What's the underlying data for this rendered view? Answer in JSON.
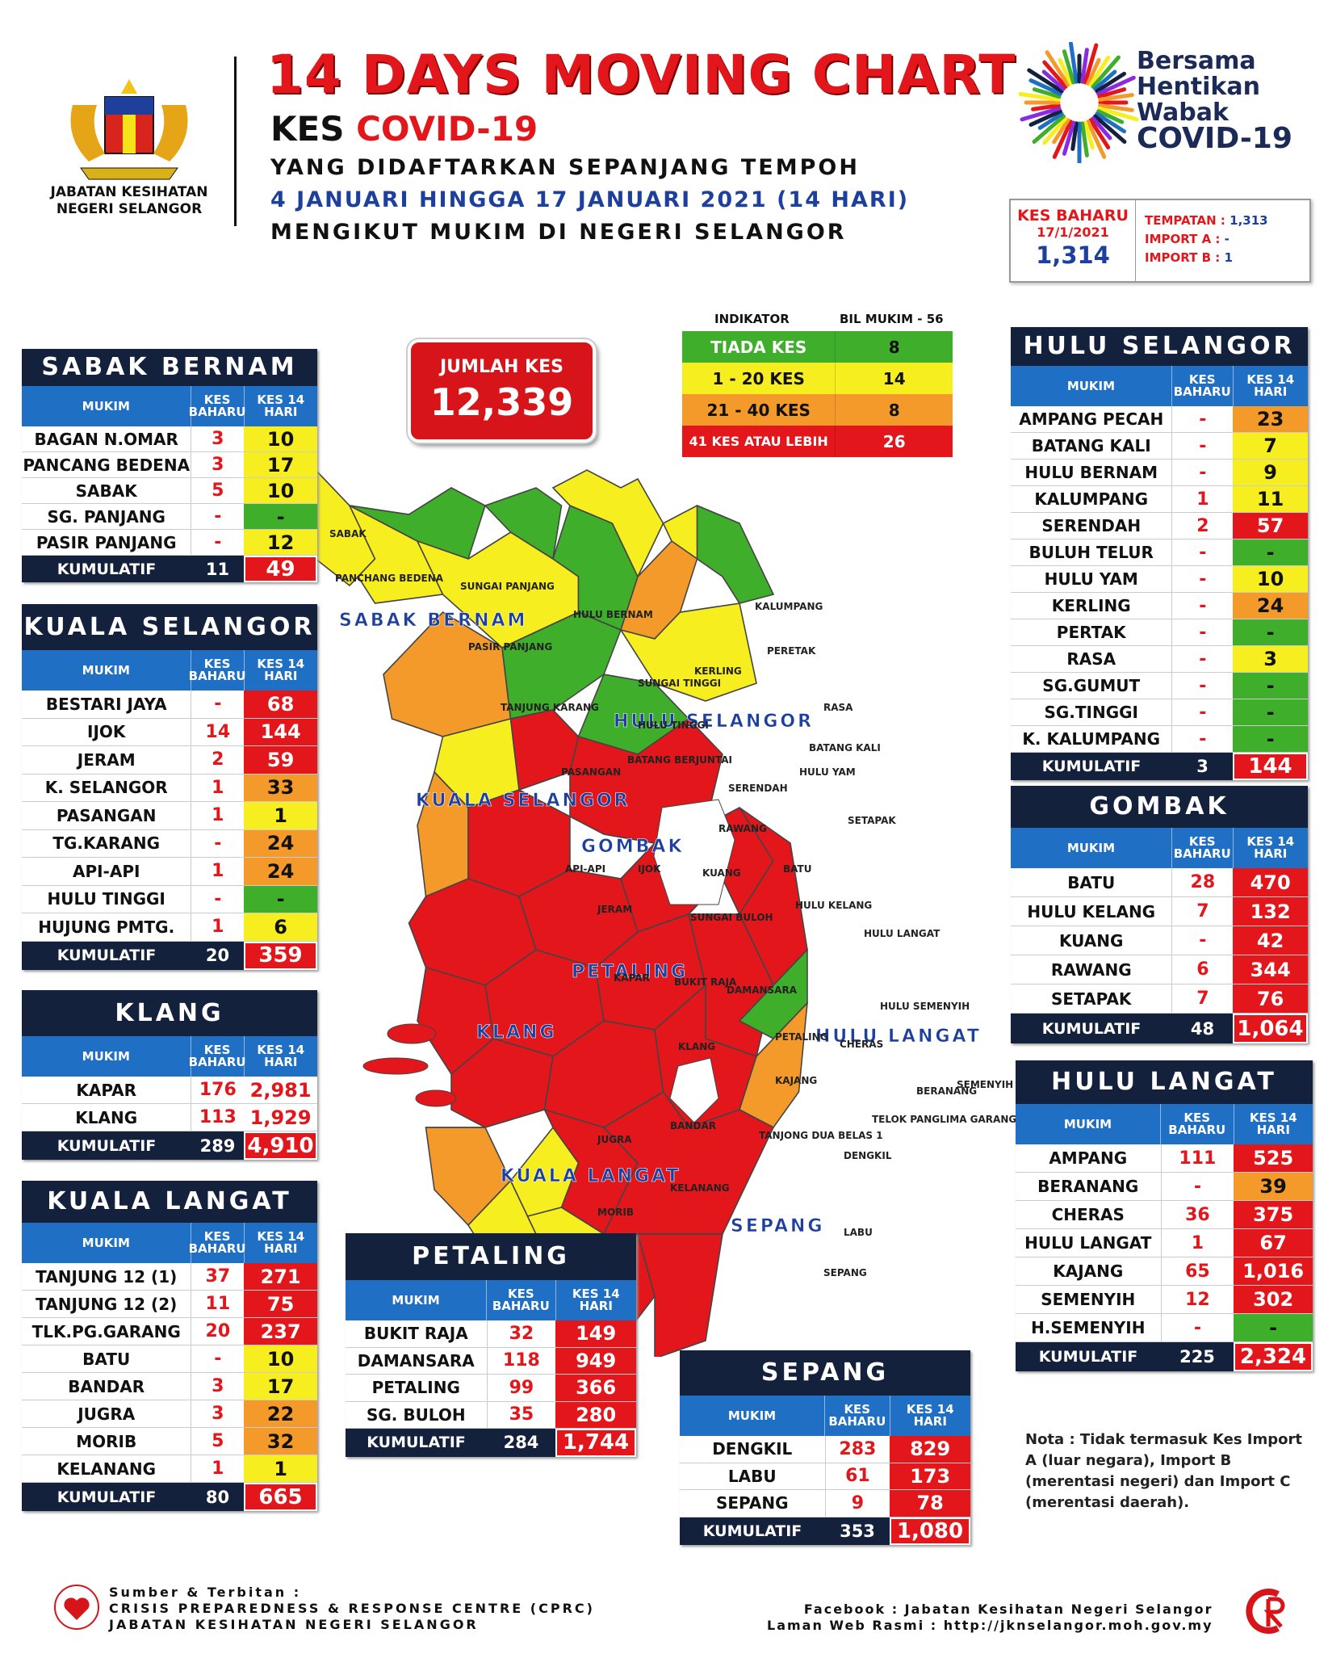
{
  "header": {
    "agency": "JABATAN KESIHATAN NEGERI SELANGOR",
    "title": "14 DAYS MOVING CHART",
    "subtitle_a": "KES ",
    "subtitle_b": "COVID-19",
    "line3": "YANG DIDAFTARKAN SEPANJANG TEMPOH",
    "line4": "4 JANUARI HINGGA 17 JANUARI 2021 (14 HARI)",
    "line5": "MENGIKUT MUKIM DI NEGERI SELANGOR",
    "campaign": [
      "Bersama",
      "Hentikan",
      "Wabak",
      "COVID-19"
    ]
  },
  "kes_baharu": {
    "label": "KES BAHARU",
    "date": "17/1/2021",
    "value": "1,314",
    "tempatan_label": "TEMPATAN :",
    "tempatan_value": "1,313",
    "import_a_label": "IMPORT A :",
    "import_a_value": "-",
    "import_b_label": "IMPORT B :",
    "import_b_value": "1"
  },
  "jumlah": {
    "label": "JUMLAH KES",
    "value": "12,339"
  },
  "indikator": {
    "label": "INDIKATOR",
    "bil": "BIL MUKIM - 56",
    "rows": [
      {
        "k": "TIADA KES",
        "v": "8",
        "color": "#3fae2a"
      },
      {
        "k": "1 - 20 KES",
        "v": "14",
        "color": "#f6ee1f"
      },
      {
        "k": "21 - 40 KES",
        "v": "8",
        "color": "#f39a2b"
      },
      {
        "k": "41 KES ATAU LEBIH",
        "v": "26",
        "color": "#e3161b"
      }
    ]
  },
  "colors": {
    "green": "#3fae2a",
    "yellow": "#f6ee1f",
    "orange": "#f39a2b",
    "red": "#e3161b",
    "navy": "#14213d",
    "blue": "#1f6fc5"
  },
  "col_headers": {
    "mukim": "MUKIM",
    "baharu": "KES BAHARU",
    "hari": "KES 14 HARI",
    "kumulatif": "KUMULATIF"
  },
  "districts": {
    "sabak_bernam": {
      "title": "SABAK BERNAM",
      "rows": [
        {
          "m": "BAGAN N.OMAR",
          "b": "3",
          "h": "10",
          "c": "y"
        },
        {
          "m": "PANCANG BEDENA",
          "b": "3",
          "h": "17",
          "c": "y"
        },
        {
          "m": "SABAK",
          "b": "5",
          "h": "10",
          "c": "y"
        },
        {
          "m": "SG. PANJANG",
          "b": "-",
          "h": "-",
          "c": "g"
        },
        {
          "m": "PASIR PANJANG",
          "b": "-",
          "h": "12",
          "c": "y"
        }
      ],
      "kum_b": "11",
      "kum_h": "49"
    },
    "kuala_selangor": {
      "title": "KUALA SELANGOR",
      "rows": [
        {
          "m": "BESTARI JAYA",
          "b": "-",
          "h": "68",
          "c": "r"
        },
        {
          "m": "IJOK",
          "b": "14",
          "h": "144",
          "c": "r"
        },
        {
          "m": "JERAM",
          "b": "2",
          "h": "59",
          "c": "r"
        },
        {
          "m": "K. SELANGOR",
          "b": "1",
          "h": "33",
          "c": "o"
        },
        {
          "m": "PASANGAN",
          "b": "1",
          "h": "1",
          "c": "y"
        },
        {
          "m": "TG.KARANG",
          "b": "-",
          "h": "24",
          "c": "o"
        },
        {
          "m": "API-API",
          "b": "1",
          "h": "24",
          "c": "o"
        },
        {
          "m": "HULU TINGGI",
          "b": "-",
          "h": "-",
          "c": "g"
        },
        {
          "m": "HUJUNG PMTG.",
          "b": "1",
          "h": "6",
          "c": "y"
        }
      ],
      "kum_b": "20",
      "kum_h": "359"
    },
    "klang": {
      "title": "KLANG",
      "rows": [
        {
          "m": "KAPAR",
          "b": "176",
          "h": "2,981",
          "c": "w"
        },
        {
          "m": "KLANG",
          "b": "113",
          "h": "1,929",
          "c": "w"
        }
      ],
      "kum_b": "289",
      "kum_h": "4,910"
    },
    "kuala_langat": {
      "title": "KUALA LANGAT",
      "rows": [
        {
          "m": "TANJUNG 12 (1)",
          "b": "37",
          "h": "271",
          "c": "r"
        },
        {
          "m": "TANJUNG 12 (2)",
          "b": "11",
          "h": "75",
          "c": "r"
        },
        {
          "m": "TLK.PG.GARANG",
          "b": "20",
          "h": "237",
          "c": "r"
        },
        {
          "m": "BATU",
          "b": "-",
          "h": "10",
          "c": "y"
        },
        {
          "m": "BANDAR",
          "b": "3",
          "h": "17",
          "c": "y"
        },
        {
          "m": "JUGRA",
          "b": "3",
          "h": "22",
          "c": "o"
        },
        {
          "m": "MORIB",
          "b": "5",
          "h": "32",
          "c": "o"
        },
        {
          "m": "KELANANG",
          "b": "1",
          "h": "1",
          "c": "y"
        }
      ],
      "kum_b": "80",
      "kum_h": "665"
    },
    "petaling": {
      "title": "PETALING",
      "rows": [
        {
          "m": "BUKIT RAJA",
          "b": "32",
          "h": "149",
          "c": "r"
        },
        {
          "m": "DAMANSARA",
          "b": "118",
          "h": "949",
          "c": "r"
        },
        {
          "m": "PETALING",
          "b": "99",
          "h": "366",
          "c": "r"
        },
        {
          "m": "SG. BULOH",
          "b": "35",
          "h": "280",
          "c": "r"
        }
      ],
      "kum_b": "284",
      "kum_h": "1,744"
    },
    "sepang": {
      "title": "SEPANG",
      "rows": [
        {
          "m": "DENGKIL",
          "b": "283",
          "h": "829",
          "c": "r"
        },
        {
          "m": "LABU",
          "b": "61",
          "h": "173",
          "c": "r"
        },
        {
          "m": "SEPANG",
          "b": "9",
          "h": "78",
          "c": "r"
        }
      ],
      "kum_b": "353",
      "kum_h": "1,080"
    },
    "hulu_selangor": {
      "title": "HULU SELANGOR",
      "rows": [
        {
          "m": "AMPANG PECAH",
          "b": "-",
          "h": "23",
          "c": "o"
        },
        {
          "m": "BATANG KALI",
          "b": "-",
          "h": "7",
          "c": "y"
        },
        {
          "m": "HULU BERNAM",
          "b": "-",
          "h": "9",
          "c": "y"
        },
        {
          "m": "KALUMPANG",
          "b": "1",
          "h": "11",
          "c": "y"
        },
        {
          "m": "SERENDAH",
          "b": "2",
          "h": "57",
          "c": "r"
        },
        {
          "m": "BULUH TELUR",
          "b": "-",
          "h": "-",
          "c": "g"
        },
        {
          "m": "HULU YAM",
          "b": "-",
          "h": "10",
          "c": "y"
        },
        {
          "m": "KERLING",
          "b": "-",
          "h": "24",
          "c": "o"
        },
        {
          "m": "PERTAK",
          "b": "-",
          "h": "-",
          "c": "g"
        },
        {
          "m": "RASA",
          "b": "-",
          "h": "3",
          "c": "y"
        },
        {
          "m": "SG.GUMUT",
          "b": "-",
          "h": "-",
          "c": "g"
        },
        {
          "m": "SG.TINGGI",
          "b": "-",
          "h": "-",
          "c": "g"
        },
        {
          "m": "K. KALUMPANG",
          "b": "-",
          "h": "-",
          "c": "g"
        }
      ],
      "kum_b": "3",
      "kum_h": "144"
    },
    "gombak": {
      "title": "GOMBAK",
      "rows": [
        {
          "m": "BATU",
          "b": "28",
          "h": "470",
          "c": "r"
        },
        {
          "m": "HULU KELANG",
          "b": "7",
          "h": "132",
          "c": "r"
        },
        {
          "m": "KUANG",
          "b": "-",
          "h": "42",
          "c": "r"
        },
        {
          "m": "RAWANG",
          "b": "6",
          "h": "344",
          "c": "r"
        },
        {
          "m": "SETAPAK",
          "b": "7",
          "h": "76",
          "c": "r"
        }
      ],
      "kum_b": "48",
      "kum_h": "1,064"
    },
    "hulu_langat": {
      "title": "HULU LANGAT",
      "rows": [
        {
          "m": "AMPANG",
          "b": "111",
          "h": "525",
          "c": "r"
        },
        {
          "m": "BERANANG",
          "b": "-",
          "h": "39",
          "c": "o"
        },
        {
          "m": "CHERAS",
          "b": "36",
          "h": "375",
          "c": "r"
        },
        {
          "m": "HULU LANGAT",
          "b": "1",
          "h": "67",
          "c": "r"
        },
        {
          "m": "KAJANG",
          "b": "65",
          "h": "1,016",
          "c": "r"
        },
        {
          "m": "SEMENYIH",
          "b": "12",
          "h": "302",
          "c": "r"
        },
        {
          "m": "H.SEMENYIH",
          "b": "-",
          "h": "-",
          "c": "g"
        }
      ],
      "kum_b": "225",
      "kum_h": "2,324"
    }
  },
  "map_labels": {
    "districts": [
      "SABAK BERNAM",
      "HULU SELANGOR",
      "KUALA SELANGOR",
      "GOMBAK",
      "PETALING",
      "KLANG",
      "HULU LANGAT",
      "KUALA LANGAT",
      "SEPANG"
    ],
    "mukim": [
      "SABAK",
      "PANCHANG BEDENA",
      "SUNGAI PANJANG",
      "PASIR PANJANG",
      "HULU BERNAM",
      "KALUMPANG",
      "TANJUNG KARANG",
      "SUNGAI TINGGI",
      "KERLING",
      "PERETAK",
      "HULU TINGGI",
      "RASA",
      "BATANG KALI",
      "HULU YAM",
      "BATANG BERJUNTAI",
      "SERENDAH",
      "PASANGAN",
      "RAWANG",
      "SETAPAK",
      "API-API",
      "IJOK",
      "KUANG",
      "BATU",
      "JERAM",
      "SUNGAI BULOH",
      "HULU KELANG",
      "HULU LANGAT",
      "KAPAR",
      "BUKIT RAJA",
      "DAMANSARA",
      "HULU SEMENYIH",
      "KLANG",
      "PETALING",
      "CHERAS",
      "KAJANG",
      "SEMENYIH",
      "TELOK PANGLIMA GARANG",
      "TANJONG DUA BELAS 1",
      "BERANANG",
      "JUGRA",
      "BANDAR",
      "DENGKIL",
      "KELANANG",
      "MORIB",
      "LABU",
      "SEPANG"
    ]
  },
  "nota": "Nota : Tidak termasuk Kes Import A (luar negara), Import B (merentasi negeri) dan Import C (merentasi daerah).",
  "footer": {
    "src1": "Sumber & Terbitan :",
    "src2": "CRISIS PREPAREDNESS & RESPONSE CENTRE (CPRC)",
    "src3": "JABATAN KESIHATAN NEGERI SELANGOR",
    "fb": "Facebook : Jabatan Kesihatan Negeri Selangor",
    "web": "Laman Web Rasmi : http://jknselangor.moh.gov.my"
  }
}
